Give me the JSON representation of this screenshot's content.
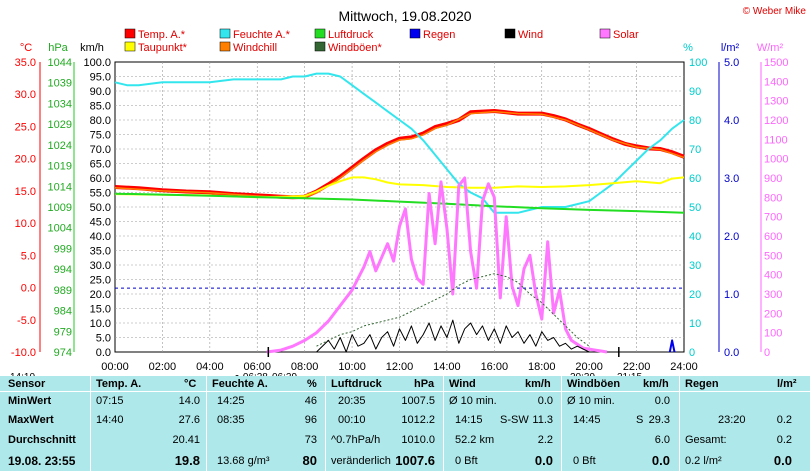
{
  "copyright": "© Weber Mike",
  "chart_data": {
    "type": "line",
    "title": "Mittwoch, 19.08.2020",
    "legend": [
      {
        "label": "Temp. A.*",
        "color": "#ff0000"
      },
      {
        "label": "Feuchte A.*",
        "color": "#33e6ee"
      },
      {
        "label": "Luftdruck",
        "color": "#22dd22"
      },
      {
        "label": "Regen",
        "color": "#0000ee"
      },
      {
        "label": "Wind",
        "color": "#000000"
      },
      {
        "label": "Solar",
        "color": "#ff77ff"
      },
      {
        "label": "Taupunkt*",
        "color": "#ffff00"
      },
      {
        "label": "Windchill",
        "color": "#ff8000"
      },
      {
        "label": "Windböen*",
        "color": "#336633"
      }
    ],
    "axes": {
      "temp": {
        "unit": "°C",
        "color": "#ff0000",
        "ticks": [
          "35.0",
          "30.0",
          "25.0",
          "20.0",
          "15.0",
          "10.0",
          "5.0",
          "0.0",
          "-5.0",
          "-10.0"
        ]
      },
      "pressure": {
        "unit": "hPa",
        "color": "#22aa22",
        "ticks": [
          "1044",
          "1039",
          "1034",
          "1029",
          "1024",
          "1019",
          "1014",
          "1009",
          "1004",
          "999",
          "994",
          "989",
          "984",
          "979",
          "974"
        ]
      },
      "wind": {
        "unit": "km/h",
        "color": "#000000",
        "ticks": [
          "100.0",
          "95.0",
          "90.0",
          "85.0",
          "80.0",
          "75.0",
          "70.0",
          "65.0",
          "60.0",
          "55.0",
          "50.0",
          "45.0",
          "40.0",
          "35.0",
          "30.0",
          "25.0",
          "20.0",
          "15.0",
          "10.0",
          "5.0",
          "0.0"
        ]
      },
      "humidity": {
        "unit": "%",
        "color": "#00cccc",
        "ticks": [
          "100",
          "90",
          "80",
          "70",
          "60",
          "50",
          "40",
          "30",
          "20",
          "10",
          "0"
        ]
      },
      "rain": {
        "unit": "l/m²",
        "color": "#0000cc",
        "ticks": [
          "5.0",
          "4.0",
          "3.0",
          "2.0",
          "1.0",
          "0.0"
        ]
      },
      "solar": {
        "unit": "W/m²",
        "color": "#ff66ff",
        "ticks": [
          "1500",
          "1400",
          "1300",
          "1200",
          "1100",
          "1000",
          "900",
          "800",
          "700",
          "600",
          "500",
          "400",
          "300",
          "200",
          "100",
          "0"
        ]
      }
    },
    "x_ticks": [
      "00:00",
      "02:00",
      "04:00",
      "06:00",
      "08:00",
      "10:00",
      "12:00",
      "14:00",
      "16:00",
      "18:00",
      "20:00",
      "22:00",
      "24:00"
    ],
    "sun_events": {
      "left_time": "14:10",
      "sunrise": "06:28",
      "sunrise2": "06:29",
      "sunset": "20:39",
      "sunset2": "21:15"
    },
    "series": [
      {
        "name": "Temp. A.*",
        "axis": "temp",
        "color": "#ff0000",
        "width": 4,
        "x": [
          0,
          1,
          2,
          3,
          4,
          5,
          6,
          6.5,
          7,
          7.5,
          8,
          8.5,
          9,
          9.5,
          10,
          10.5,
          11,
          11.5,
          12,
          12.5,
          13,
          13.5,
          14,
          14.5,
          15,
          15.5,
          16,
          16.5,
          17,
          17.5,
          18,
          18.5,
          19,
          19.5,
          20,
          20.5,
          21,
          21.5,
          22,
          22.5,
          23,
          23.5,
          24
        ],
        "values": [
          15.6,
          15.4,
          15.1,
          14.9,
          14.8,
          14.5,
          14.3,
          14.2,
          14.1,
          14.0,
          14.1,
          14.9,
          16.0,
          17.2,
          18.6,
          20.0,
          21.3,
          22.3,
          23.1,
          23.3,
          23.9,
          24.9,
          25.4,
          26.0,
          27.2,
          27.3,
          27.4,
          27.2,
          27.0,
          27.0,
          27.0,
          26.6,
          26.1,
          25.3,
          24.6,
          23.8,
          23.0,
          22.3,
          21.9,
          21.6,
          21.5,
          21.0,
          20.3
        ]
      },
      {
        "name": "Windchill",
        "axis": "temp",
        "color": "#ff8000",
        "width": 1.5,
        "x": [
          0,
          2,
          4,
          6,
          7.5,
          8,
          8.5,
          9,
          9.5,
          10,
          10.5,
          11,
          11.5,
          12,
          12.5,
          13,
          13.5,
          14,
          15,
          16,
          17,
          18,
          19,
          20,
          21,
          22,
          23,
          24
        ],
        "values": [
          15.5,
          15.0,
          14.7,
          14.2,
          13.9,
          14.0,
          14.7,
          15.8,
          17.0,
          18.4,
          19.8,
          21.1,
          22.1,
          22.9,
          23.1,
          23.7,
          24.7,
          25.2,
          27.0,
          27.3,
          27.0,
          26.9,
          26.0,
          24.5,
          22.9,
          21.8,
          21.4,
          20.2
        ]
      },
      {
        "name": "Feuchte A.*",
        "axis": "humidity",
        "color": "#33e6ee",
        "width": 2,
        "x": [
          0,
          0.5,
          1,
          2,
          3,
          4,
          5,
          6,
          7,
          7.5,
          8,
          8.5,
          9,
          9.5,
          10,
          10.5,
          11,
          11.5,
          12,
          12.5,
          13,
          13.5,
          14,
          14.5,
          15,
          15.5,
          16,
          16.5,
          17,
          17.5,
          18,
          18.5,
          19,
          19.5,
          20,
          20.5,
          21,
          21.5,
          22,
          22.5,
          23,
          23.5,
          24
        ],
        "values": [
          93,
          92,
          92,
          93,
          93,
          93,
          94,
          94,
          94,
          95,
          95,
          96,
          96,
          95,
          92,
          89,
          86,
          83,
          80,
          77,
          73,
          68,
          63,
          58,
          55,
          53,
          48,
          48,
          48,
          49,
          50,
          50,
          50,
          51,
          52,
          55,
          58,
          62,
          66,
          70,
          73,
          77,
          80
        ]
      },
      {
        "name": "Taupunkt*",
        "axis": "temp",
        "color": "#ffff00",
        "width": 2,
        "x": [
          0,
          2,
          4,
          6,
          7,
          8,
          8.5,
          9,
          9.5,
          10,
          10.5,
          11,
          11.5,
          12,
          13,
          14,
          15,
          16,
          17,
          18,
          19,
          20,
          21,
          22,
          23,
          23.5,
          24
        ],
        "values": [
          14.5,
          14.4,
          14.3,
          14.0,
          14.1,
          14.2,
          14.9,
          15.8,
          16.5,
          17.1,
          17.1,
          16.8,
          16.3,
          16.0,
          15.9,
          15.6,
          15.5,
          15.5,
          15.7,
          15.6,
          15.7,
          15.9,
          16.2,
          16.5,
          16.2,
          16.9,
          17.1
        ]
      },
      {
        "name": "Luftdruck",
        "axis": "pressure",
        "color": "#22dd22",
        "width": 2,
        "x": [
          0,
          2,
          4,
          6,
          8,
          10,
          12,
          14,
          16,
          18,
          20,
          22,
          24
        ],
        "values": [
          1012.2,
          1012.0,
          1011.7,
          1011.4,
          1011.1,
          1010.8,
          1010.3,
          1009.8,
          1009.2,
          1008.7,
          1008.3,
          1008.0,
          1007.6
        ]
      },
      {
        "name": "Solar",
        "axis": "solar",
        "color": "#ff77ff",
        "width": 3,
        "x": [
          6.4,
          7,
          7.5,
          8,
          8.5,
          9,
          9.5,
          10,
          10.25,
          10.5,
          10.75,
          11,
          11.25,
          11.5,
          11.75,
          12,
          12.25,
          12.5,
          12.75,
          13,
          13.25,
          13.5,
          13.75,
          14,
          14.25,
          14.5,
          14.75,
          15,
          15.25,
          15.5,
          15.75,
          16,
          16.25,
          16.5,
          16.75,
          17,
          17.25,
          17.5,
          17.75,
          18,
          18.25,
          18.5,
          18.75,
          19,
          19.25,
          19.5,
          19.75,
          20,
          20.25,
          20.5,
          20.75
        ],
        "values": [
          0,
          10,
          30,
          60,
          100,
          160,
          240,
          320,
          380,
          440,
          520,
          420,
          490,
          560,
          470,
          650,
          740,
          480,
          380,
          350,
          820,
          560,
          880,
          640,
          300,
          860,
          900,
          520,
          330,
          780,
          870,
          800,
          280,
          700,
          340,
          240,
          430,
          500,
          300,
          170,
          570,
          200,
          320,
          120,
          60,
          40,
          20,
          15,
          10,
          5,
          0
        ]
      },
      {
        "name": "Windböen*",
        "axis": "wind",
        "color": "#336633",
        "width": 1,
        "dash": "2,2",
        "x": [
          8.5,
          9,
          9.5,
          10,
          10.5,
          11,
          11.5,
          12,
          12.5,
          13,
          13.5,
          14,
          14.5,
          15,
          15.5,
          16,
          16.5,
          17,
          17.5,
          18,
          18.5,
          19,
          19.5,
          20
        ],
        "values": [
          2,
          4,
          6,
          7,
          9,
          10,
          11,
          12,
          14,
          16,
          18,
          20,
          23,
          25,
          26,
          27,
          26,
          24,
          20,
          17,
          13,
          9,
          5,
          2
        ]
      },
      {
        "name": "Wind",
        "axis": "wind",
        "color": "#000000",
        "width": 1,
        "x": [
          8.5,
          9,
          9.25,
          9.5,
          9.75,
          10,
          10.25,
          10.5,
          10.75,
          11,
          11.25,
          11.5,
          11.75,
          12,
          12.25,
          12.5,
          12.75,
          13,
          13.25,
          13.5,
          13.75,
          14,
          14.25,
          14.5,
          14.75,
          15,
          15.25,
          15.5,
          15.75,
          16,
          16.25,
          16.5,
          16.75,
          17,
          17.25,
          17.5,
          17.75,
          18,
          18.25,
          18.5,
          18.75,
          19,
          19.25,
          19.5,
          20
        ],
        "values": [
          0,
          4,
          1,
          5,
          0,
          6,
          2,
          3,
          6,
          1,
          5,
          7,
          2,
          8,
          4,
          9,
          3,
          6,
          10,
          4,
          9,
          5,
          11,
          3,
          8,
          10,
          6,
          9,
          4,
          8,
          3,
          9,
          5,
          7,
          3,
          6,
          2,
          7,
          4,
          5,
          2,
          3,
          1,
          2,
          0
        ]
      },
      {
        "name": "Regen",
        "axis": "rain",
        "color": "#0000ee",
        "width": 2,
        "x": [
          23.4,
          23.5,
          23.6
        ],
        "values": [
          0.0,
          0.2,
          0.0
        ]
      }
    ]
  },
  "table": {
    "headers": {
      "sensor": "Sensor",
      "temp": "Temp. A.",
      "temp_unit": "°C",
      "hum": "Feuchte A.",
      "hum_unit": "%",
      "press": "Luftdruck",
      "press_unit": "hPa",
      "wind": "Wind",
      "wind_unit": "km/h",
      "gust": "Windböen",
      "gust_unit": "km/h",
      "rain": "Regen",
      "rain_unit": "l/m²"
    },
    "row_labels": {
      "min": "MinWert",
      "max": "MaxWert",
      "avg": "Durchschnitt",
      "now": "19.08. 23:55"
    },
    "temp": {
      "min_time": "07:15",
      "min": "14.0",
      "max_time": "14:40",
      "max": "27.6",
      "avg": "20.41",
      "now": "19.8"
    },
    "hum": {
      "min_time": "14:25",
      "min": "46",
      "max_time": "08:35",
      "max": "96",
      "avg": "73",
      "abs": "13.68 g/m³",
      "now": "80"
    },
    "press": {
      "min_time": "20:35",
      "min": "1007.5",
      "max_time": "00:10",
      "max": "1012.2",
      "trend_label": "^0.7hPa/h",
      "avg": "1010.0",
      "trend": "veränderlich",
      "now": "1007.6"
    },
    "wind": {
      "avg_label": "Ø 10 min.",
      "avg": "0.0",
      "max_time": "14:15",
      "max_dir": "S-SW",
      "max": "11.3",
      "dist": "52.2 km",
      "day_avg": "2.2",
      "bft": "0 Bft",
      "now": "0.0"
    },
    "gust": {
      "avg_label": "Ø 10 min.",
      "avg": "0.0",
      "max_time": "14:45",
      "max_dir": "S",
      "max": "29.3",
      "day_avg": "6.0",
      "bft": "0 Bft",
      "now": "0.0"
    },
    "rain": {
      "last_time": "23:20",
      "last": "0.2",
      "total_label": "Gesamt:",
      "total": "0.2",
      "now_label": "0.2 l/m²",
      "now": "0.0"
    }
  }
}
